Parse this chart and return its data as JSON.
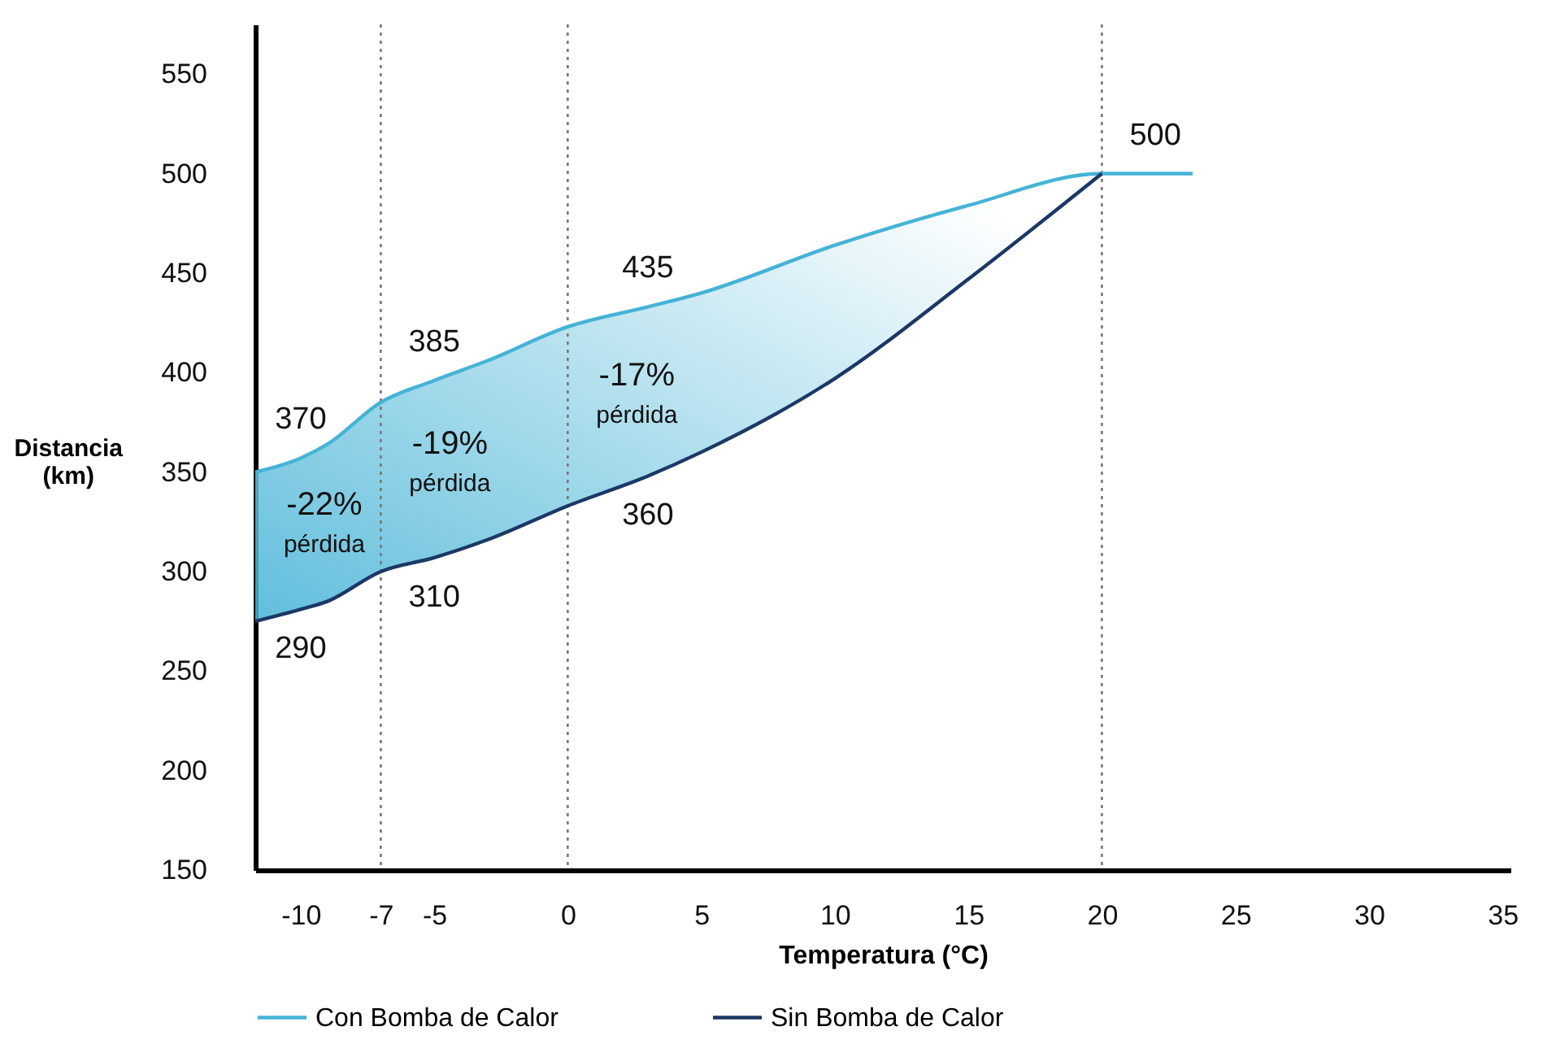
{
  "chart_data": {
    "type": "line",
    "xlabel": "Temperatura (°C)",
    "ylabel": "Distancia (km)",
    "x": [
      -11.7,
      -10,
      -9,
      -7,
      -5,
      -3,
      0,
      3,
      5,
      10,
      15,
      20,
      22,
      23.4
    ],
    "series": [
      {
        "name": "Con Bomba de Calor",
        "color": "#45b3d6",
        "values": [
          350,
          357,
          364,
          385,
          396,
          406,
          423,
          433,
          440,
          464,
          484,
          500,
          500,
          500
        ],
        "lower": [
          275,
          281,
          285,
          300,
          307,
          316,
          333,
          348,
          360,
          397,
          447,
          500,
          null,
          null
        ],
        "upper": [
          350,
          357,
          364,
          385,
          396,
          406,
          423,
          433,
          440,
          464,
          484,
          500,
          null,
          null
        ]
      },
      {
        "name": "Sin Bomba de Calor",
        "color": "#1b3866",
        "values": [
          275,
          281,
          285,
          300,
          307,
          316,
          333,
          348,
          360,
          397,
          447,
          500,
          null,
          null
        ]
      }
    ],
    "xlim": [
      -11.7,
      35.3
    ],
    "ylim": [
      150,
      575
    ],
    "xticks": [
      -10,
      -7,
      -5,
      0,
      5,
      10,
      15,
      20,
      25,
      30,
      35
    ],
    "yticks": [
      150,
      200,
      250,
      300,
      350,
      400,
      450,
      500,
      550
    ],
    "ref_lines": [
      {
        "axis": "x",
        "value": -7,
        "color": "#777777",
        "line_style": "dotted"
      },
      {
        "axis": "x",
        "value": 0,
        "color": "#777777",
        "line_style": "dotted"
      },
      {
        "axis": "x",
        "value": 20,
        "color": "#777777",
        "line_style": "dotted"
      }
    ],
    "annotations": [
      {
        "text": "370",
        "x": -10,
        "y": 357
      },
      {
        "text": "385",
        "x": -5,
        "y": 396
      },
      {
        "text": "435",
        "x": 3,
        "y": 433
      },
      {
        "text": "500",
        "x": 22,
        "y": 500
      },
      {
        "text": "290",
        "x": -10,
        "y": 281
      },
      {
        "text": "310",
        "x": -5,
        "y": 307
      },
      {
        "text": "360",
        "x": 3,
        "y": 348
      },
      "-22%",
      "pérdida",
      "-19%",
      "pérdida",
      "-17%",
      "pérdida"
    ],
    "grid": false,
    "legend": "bottom",
    "marker": "none",
    "line_style": "solid"
  }
}
